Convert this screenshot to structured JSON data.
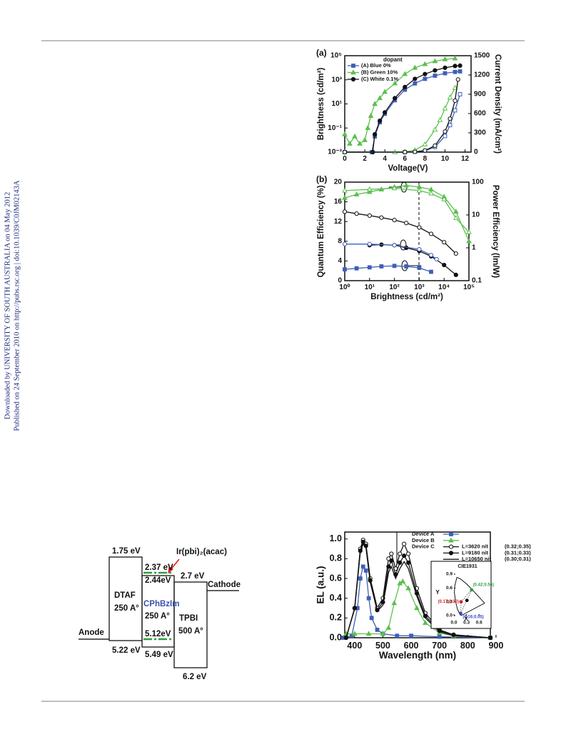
{
  "sidebar": {
    "downloaded": "Downloaded by UNIVERSITY OF SOUTH AUSTRALIA on 04 May 2012",
    "published": "Published on 24 September 2010 on http://pubs.rsc.org | doi:10.1039/C0JM02143A"
  },
  "chart_data": [
    {
      "type": "line",
      "panel": "(a)",
      "xlabel": "Voltage(V)",
      "ylabel": "Brightness (cd/m²)",
      "y2label": "Current Density (mA/cm²)",
      "xlim": [
        0,
        12.6
      ],
      "ylim": [
        0.001,
        100000
      ],
      "ylog": true,
      "y2lim": [
        0,
        1500
      ],
      "xticks": [
        0,
        2,
        4,
        6,
        8,
        10,
        12
      ],
      "yticks": [
        {
          "value": 0.001,
          "label": "10⁻³"
        },
        {
          "value": 0.1,
          "label": "10⁻¹"
        },
        {
          "value": 10,
          "label": "10¹"
        },
        {
          "value": 1000,
          "label": "10³"
        },
        {
          "value": 100000,
          "label": "10⁵"
        }
      ],
      "y2ticks": [
        0,
        300,
        600,
        900,
        1200,
        1500
      ],
      "legend_title": "dopant",
      "series": [
        {
          "name": "(A) Blue   0%",
          "color": "#3f5fb8",
          "marker": "square",
          "x": [
            0,
            2.7,
            3,
            3.5,
            4,
            5,
            6,
            7,
            8,
            9,
            10,
            11,
            11.5
          ],
          "values": [
            0.001,
            0.001,
            0.02,
            0.3,
            1.5,
            20,
            150,
            500,
            1200,
            2200,
            3500,
            4500,
            5000
          ]
        },
        {
          "name": "(B) Green 10%",
          "color": "#5cbf4f",
          "marker": "triangle",
          "x": [
            0,
            0.5,
            1,
            1.5,
            2,
            2.3,
            2.6,
            3,
            3.5,
            4,
            5,
            6,
            7,
            8,
            9,
            10,
            11
          ],
          "values": [
            0.03,
            0.005,
            0.02,
            0.005,
            0.01,
            0.1,
            1,
            10,
            30,
            100,
            500,
            3000,
            10000,
            20000,
            35000,
            50000,
            60000
          ]
        },
        {
          "name": "(C) White  0.1%",
          "color": "#111111",
          "marker": "circle",
          "x": [
            0,
            2.8,
            3,
            3.5,
            4,
            5,
            6,
            7,
            8,
            9,
            10,
            11,
            11.5
          ],
          "values": [
            0.001,
            0.001,
            0.03,
            0.4,
            2,
            30,
            250,
            1200,
            3000,
            6000,
            10000,
            14000,
            15000
          ]
        },
        {
          "axis": "y2",
          "color": "#3f5fb8",
          "marker": "square-open",
          "x": [
            0,
            6,
            7,
            8,
            9,
            10,
            10.5,
            11,
            11.5
          ],
          "values": [
            0,
            0,
            5,
            20,
            80,
            250,
            420,
            650,
            900
          ]
        },
        {
          "axis": "y2",
          "color": "#5cbf4f",
          "marker": "triangle-open",
          "x": [
            0,
            5,
            6,
            7,
            8,
            9,
            9.5,
            10,
            10.5,
            11
          ],
          "values": [
            0,
            0,
            5,
            30,
            120,
            350,
            500,
            680,
            850,
            1000
          ]
        },
        {
          "axis": "y2",
          "color": "#111111",
          "marker": "circle-open",
          "x": [
            0,
            6,
            7,
            8,
            9,
            10,
            10.5,
            11,
            11.3
          ],
          "values": [
            0,
            0,
            5,
            25,
            100,
            320,
            520,
            800,
            1130
          ]
        }
      ]
    },
    {
      "type": "line",
      "panel": "(b)",
      "xlabel": "Brightness (cd/m²)",
      "ylabel": "Quantum Efficiency (%)",
      "y2label": "Power Efficiency (lm/W)",
      "xlim": [
        1,
        100000
      ],
      "xlog": true,
      "ylim": [
        0,
        20
      ],
      "y2lim": [
        0.1,
        100
      ],
      "y2log": true,
      "xticks": [
        {
          "value": 1,
          "label": "10⁰"
        },
        {
          "value": 10,
          "label": "10¹"
        },
        {
          "value": 100,
          "label": "10²"
        },
        {
          "value": 1000,
          "label": "10³"
        },
        {
          "value": 10000,
          "label": "10⁴"
        },
        {
          "value": 100000,
          "label": "10⁵"
        }
      ],
      "yticks": [
        0,
        4,
        8,
        12,
        16,
        20
      ],
      "y2ticks": [
        0.1,
        1,
        10,
        100
      ],
      "series": [
        {
          "color": "#5cbf4f",
          "marker": "triangle",
          "x": [
            1,
            3,
            10,
            30,
            100,
            300,
            1000,
            3000,
            10000,
            30000,
            100000
          ],
          "values": [
            16.8,
            17.5,
            18,
            18.5,
            19,
            19.3,
            19,
            18.5,
            17,
            14,
            8
          ]
        },
        {
          "axis": "y2",
          "color": "#5cbf4f",
          "marker": "triangle-open",
          "x": [
            1,
            10,
            100,
            1000,
            3000,
            10000,
            30000,
            100000
          ],
          "values": [
            55,
            60,
            65,
            55,
            45,
            30,
            8,
            3
          ]
        },
        {
          "color": "#111111",
          "marker": "circle-open",
          "x": [
            1,
            3,
            10,
            30,
            100,
            300,
            1000,
            3000,
            10000,
            30000
          ],
          "values": [
            14,
            13.6,
            13.2,
            12.8,
            12.3,
            11.7,
            10.8,
            9.5,
            7.8,
            5.5
          ]
        },
        {
          "axis": "y2",
          "color": "#111111",
          "marker": "circle",
          "x": [
            10,
            30,
            100,
            300,
            1000,
            3000,
            10000,
            30000
          ],
          "values": [
            1.2,
            1.25,
            1.2,
            1,
            0.8,
            0.55,
            0.3,
            0.15
          ]
        },
        {
          "color": "#3f5fb8",
          "marker": "square",
          "x": [
            1,
            3,
            10,
            30,
            100,
            300,
            1000,
            3000
          ],
          "values": [
            2.3,
            2.5,
            2.7,
            2.9,
            3,
            2.9,
            2.6,
            1.8
          ]
        },
        {
          "axis": "y2",
          "color": "#3f5fb8",
          "marker": "circle-open",
          "x": [
            1,
            10,
            100,
            1000,
            3000,
            5000
          ],
          "values": [
            1.3,
            1.3,
            1.2,
            0.9,
            0.6,
            0.45
          ]
        }
      ]
    },
    {
      "type": "line",
      "xlabel": "Wavelength (nm)",
      "ylabel": "EL  (a.u.)",
      "xlim": [
        365,
        880
      ],
      "ylim": [
        0,
        1.07
      ],
      "xticks": [
        400,
        500,
        600,
        700,
        800,
        900
      ],
      "yticks": [
        {
          "value": 0,
          "label": "0.0"
        },
        0.2,
        0.4,
        0.6,
        0.8,
        {
          "value": 1,
          "label": "1.0"
        }
      ],
      "group_label": "Device C",
      "series": [
        {
          "name": "Device A",
          "color": "#3f5fb8",
          "marker": "square",
          "x": [
            360,
            390,
            410,
            420,
            430,
            440,
            450,
            460,
            480,
            500,
            550,
            600,
            700,
            880
          ],
          "values": [
            0,
            0.02,
            0.3,
            0.6,
            0.72,
            0.68,
            0.4,
            0.2,
            0.08,
            0.04,
            0.02,
            0.02,
            0.01,
            0
          ]
        },
        {
          "name": "Device B",
          "color": "#5cbf4f",
          "marker": "triangle",
          "x": [
            370,
            400,
            450,
            500,
            520,
            540,
            560,
            570,
            590,
            620,
            650,
            700,
            750,
            880
          ],
          "values": [
            0.04,
            0.04,
            0.04,
            0.04,
            0.1,
            0.35,
            0.55,
            0.57,
            0.5,
            0.3,
            0.15,
            0.05,
            0.02,
            0
          ]
        },
        {
          "name": "L=3620 nit",
          "cie": "(0.32;0.35)",
          "color": "#111111",
          "marker": "circle-open",
          "x": [
            370,
            400,
            420,
            430,
            440,
            455,
            480,
            500,
            520,
            530,
            545,
            560,
            575,
            590,
            620,
            650,
            700,
            750,
            880
          ],
          "values": [
            0,
            0.3,
            0.9,
            0.99,
            0.95,
            0.6,
            0.3,
            0.4,
            0.8,
            0.85,
            0.7,
            0.85,
            0.95,
            0.85,
            0.5,
            0.25,
            0.08,
            0.03,
            0
          ]
        },
        {
          "name": "L=9180 nit",
          "cie": "(0.31;0.33)",
          "color": "#111111",
          "marker": "circle",
          "x": [
            370,
            400,
            420,
            430,
            440,
            455,
            480,
            500,
            520,
            530,
            545,
            560,
            575,
            590,
            620,
            650,
            700,
            750,
            880
          ],
          "values": [
            0,
            0.3,
            0.88,
            0.97,
            0.93,
            0.58,
            0.28,
            0.36,
            0.72,
            0.78,
            0.64,
            0.76,
            0.83,
            0.76,
            0.45,
            0.22,
            0.07,
            0.03,
            0
          ]
        },
        {
          "name": "L=10650 nit",
          "cie": "(0.30;0.31)",
          "color": "#111111",
          "x": [
            370,
            400,
            420,
            430,
            440,
            455,
            480,
            500,
            520,
            530,
            545,
            560,
            575,
            590,
            620,
            650,
            700,
            750,
            880
          ],
          "values": [
            0,
            0.29,
            0.86,
            0.95,
            0.91,
            0.56,
            0.27,
            0.33,
            0.66,
            0.72,
            0.6,
            0.7,
            0.77,
            0.7,
            0.42,
            0.2,
            0.06,
            0.02,
            0
          ]
        }
      ],
      "inset": {
        "title": "CIE1931",
        "xlabel": "X",
        "ylabel": "Y",
        "xlim": [
          0,
          0.8
        ],
        "ylim": [
          0,
          0.9
        ],
        "xticks": [
          {
            "value": 0,
            "label": "0.0"
          },
          0.3,
          0.6
        ],
        "yticks": [
          {
            "value": 0,
            "label": "0.0"
          },
          0.3,
          0.6,
          0.9
        ],
        "points": [
          {
            "x": 0.42,
            "y": 0.56,
            "label": "(0.42;0.56)",
            "color": "#2e9e3e"
          },
          {
            "x": 0.17,
            "y": 0.3,
            "label": "(0.17;0.30)",
            "color": "#d42222"
          },
          {
            "x": 0.31,
            "y": 0.33,
            "color": "#000000"
          },
          {
            "x": 0.16,
            "y": 0.05,
            "label": "(0.16;0.05)",
            "color": "#3344cc"
          }
        ]
      }
    }
  ],
  "diagram": {
    "anode": "Anode",
    "cathode": "Cathode",
    "dopant": "Ir(pbi)₂(acac)",
    "layers": [
      {
        "name": "DTAF",
        "thickness": "250 A°",
        "lumo": "1.75 eV",
        "homo": "5.22 eV"
      },
      {
        "name": "CPhBzIm",
        "thickness": "250 A°",
        "lumo": "2.44eV",
        "homo": "5.49 eV",
        "dopant_lumo": "2.37 eV",
        "dopant_homo": "5.12eV"
      },
      {
        "name": "TPBI",
        "thickness": "500 A°",
        "lumo": "2.7 eV",
        "homo": "6.2 eV"
      }
    ]
  }
}
